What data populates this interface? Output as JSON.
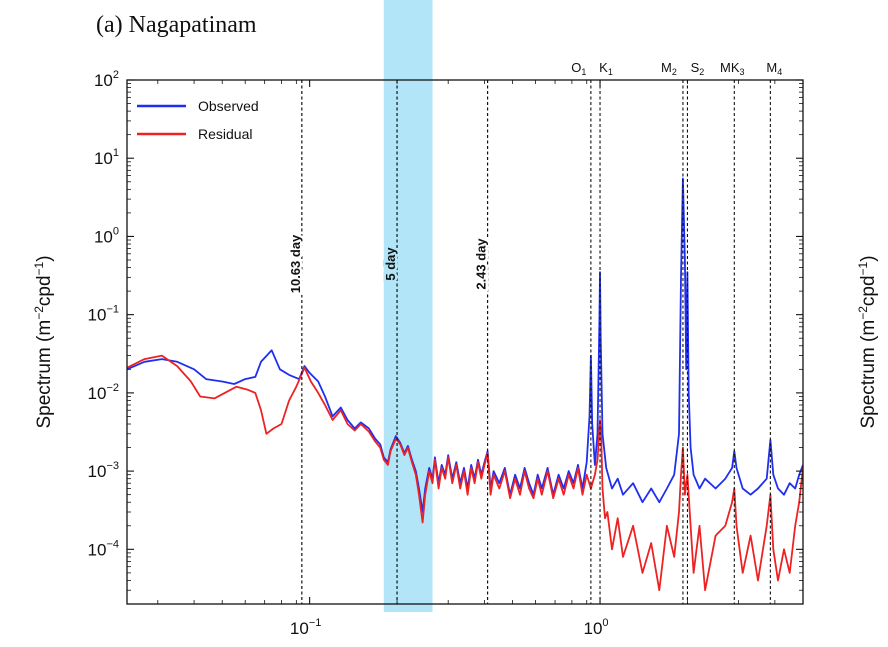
{
  "figure": {
    "panel_title": "(a) Nagapatinam",
    "ylabel_main": "Spectrum (m",
    "ylabel_sup1": "−2",
    "ylabel_mid": "cpd",
    "ylabel_sup2": "−1",
    "ylabel_end": ")",
    "right_ylabel_main": "Spectrum (m",
    "right_ylabel_sup1": "−2",
    "right_ylabel_mid": "cpd",
    "right_ylabel_sup2": "−1",
    "right_ylabel_end": ")"
  },
  "chart_data": {
    "type": "line",
    "title": "(a) Nagapatinam",
    "xlabel": "",
    "ylabel": "Spectrum (m⁻²cpd⁻¹)",
    "x_scale": "log",
    "y_scale": "log",
    "xlim": [
      0.0235,
      5.0
    ],
    "ylim": [
      2e-05,
      100
    ],
    "x_ticks": [
      {
        "value": 0.1,
        "base": "10",
        "exp": "−1"
      },
      {
        "value": 1,
        "base": "10",
        "exp": "0"
      }
    ],
    "y_ticks": [
      {
        "value": 100,
        "base": "10",
        "exp": "2"
      },
      {
        "value": 10,
        "base": "10",
        "exp": "1"
      },
      {
        "value": 1,
        "base": "10",
        "exp": "0"
      },
      {
        "value": 0.1,
        "base": "10",
        "exp": "−1"
      },
      {
        "value": 0.01,
        "base": "10",
        "exp": "−2"
      },
      {
        "value": 0.001,
        "base": "10",
        "exp": "−3"
      },
      {
        "value": 0.0001,
        "base": "10",
        "exp": "−4"
      }
    ],
    "highlight_band": {
      "x_range": [
        0.18,
        0.265
      ],
      "color": "#b3e5f8"
    },
    "period_lines": [
      {
        "x": 0.094,
        "label": "10.63 day"
      },
      {
        "x": 0.2,
        "label": "5 day"
      },
      {
        "x": 0.41,
        "label": "2.43 day"
      }
    ],
    "constituents": [
      {
        "x": 0.93,
        "name": "O",
        "sub": "1"
      },
      {
        "x": 1.0,
        "name": "K",
        "sub": "1"
      },
      {
        "x": 1.93,
        "name": "M",
        "sub": "2"
      },
      {
        "x": 2.0,
        "name": "S",
        "sub": "2"
      },
      {
        "x": 2.9,
        "name": "MK",
        "sub": "3"
      },
      {
        "x": 3.86,
        "name": "M",
        "sub": "4"
      }
    ],
    "grid": false,
    "legend_position": "top-left",
    "series": [
      {
        "name": "Observed",
        "color": "#1f2ff0",
        "points": [
          [
            0.0235,
            0.02
          ],
          [
            0.027,
            0.025
          ],
          [
            0.031,
            0.027
          ],
          [
            0.035,
            0.025
          ],
          [
            0.04,
            0.02
          ],
          [
            0.044,
            0.015
          ],
          [
            0.05,
            0.014
          ],
          [
            0.055,
            0.013
          ],
          [
            0.06,
            0.015
          ],
          [
            0.065,
            0.016
          ],
          [
            0.068,
            0.025
          ],
          [
            0.074,
            0.035
          ],
          [
            0.079,
            0.02
          ],
          [
            0.085,
            0.017
          ],
          [
            0.092,
            0.015
          ],
          [
            0.096,
            0.022
          ],
          [
            0.1,
            0.018
          ],
          [
            0.107,
            0.014
          ],
          [
            0.113,
            0.009
          ],
          [
            0.12,
            0.005
          ],
          [
            0.128,
            0.0065
          ],
          [
            0.135,
            0.0045
          ],
          [
            0.143,
            0.0035
          ],
          [
            0.15,
            0.0042
          ],
          [
            0.16,
            0.0035
          ],
          [
            0.168,
            0.0026
          ],
          [
            0.175,
            0.0022
          ],
          [
            0.18,
            0.0015
          ],
          [
            0.186,
            0.0013
          ],
          [
            0.19,
            0.0019
          ],
          [
            0.198,
            0.0028
          ],
          [
            0.205,
            0.0023
          ],
          [
            0.212,
            0.0017
          ],
          [
            0.218,
            0.0021
          ],
          [
            0.225,
            0.0014
          ],
          [
            0.232,
            0.001
          ],
          [
            0.238,
            0.0006
          ],
          [
            0.245,
            0.0003
          ],
          [
            0.25,
            0.0006
          ],
          [
            0.258,
            0.0011
          ],
          [
            0.265,
            0.0008
          ],
          [
            0.27,
            0.0015
          ],
          [
            0.278,
            0.0007
          ],
          [
            0.285,
            0.0012
          ],
          [
            0.293,
            0.0009
          ],
          [
            0.3,
            0.0016
          ],
          [
            0.31,
            0.0008
          ],
          [
            0.32,
            0.0013
          ],
          [
            0.33,
            0.0007
          ],
          [
            0.34,
            0.0011
          ],
          [
            0.35,
            0.0006
          ],
          [
            0.36,
            0.0012
          ],
          [
            0.37,
            0.0008
          ],
          [
            0.38,
            0.0014
          ],
          [
            0.39,
            0.0009
          ],
          [
            0.4,
            0.0013
          ],
          [
            0.41,
            0.0018
          ],
          [
            0.42,
            0.0006
          ],
          [
            0.43,
            0.001
          ],
          [
            0.45,
            0.0007
          ],
          [
            0.47,
            0.0011
          ],
          [
            0.49,
            0.0005
          ],
          [
            0.51,
            0.0009
          ],
          [
            0.53,
            0.0006
          ],
          [
            0.55,
            0.0011
          ],
          [
            0.57,
            0.0007
          ],
          [
            0.59,
            0.0005
          ],
          [
            0.61,
            0.0009
          ],
          [
            0.63,
            0.0006
          ],
          [
            0.66,
            0.0011
          ],
          [
            0.69,
            0.0005
          ],
          [
            0.72,
            0.0009
          ],
          [
            0.75,
            0.0006
          ],
          [
            0.78,
            0.001
          ],
          [
            0.81,
            0.0007
          ],
          [
            0.84,
            0.0012
          ],
          [
            0.87,
            0.0006
          ],
          [
            0.9,
            0.0013
          ],
          [
            0.92,
            0.005
          ],
          [
            0.93,
            0.03
          ],
          [
            0.94,
            0.004
          ],
          [
            0.96,
            0.0012
          ],
          [
            0.98,
            0.003
          ],
          [
            0.995,
            0.08
          ],
          [
            1.0,
            0.35
          ],
          [
            1.005,
            0.05
          ],
          [
            1.02,
            0.003
          ],
          [
            1.05,
            0.0011
          ],
          [
            1.1,
            0.0006
          ],
          [
            1.15,
            0.0008
          ],
          [
            1.2,
            0.0005
          ],
          [
            1.3,
            0.0007
          ],
          [
            1.4,
            0.0004
          ],
          [
            1.5,
            0.0006
          ],
          [
            1.6,
            0.0004
          ],
          [
            1.7,
            0.0006
          ],
          [
            1.8,
            0.0009
          ],
          [
            1.87,
            0.003
          ],
          [
            1.9,
            0.3
          ],
          [
            1.93,
            5.5
          ],
          [
            1.96,
            0.5
          ],
          [
            1.98,
            0.02
          ],
          [
            2.0,
            0.35
          ],
          [
            2.02,
            0.01
          ],
          [
            2.05,
            0.002
          ],
          [
            2.1,
            0.0009
          ],
          [
            2.2,
            0.0006
          ],
          [
            2.3,
            0.0008
          ],
          [
            2.5,
            0.0006
          ],
          [
            2.7,
            0.0008
          ],
          [
            2.85,
            0.0011
          ],
          [
            2.9,
            0.0018
          ],
          [
            2.95,
            0.0011
          ],
          [
            3.1,
            0.0006
          ],
          [
            3.3,
            0.0005
          ],
          [
            3.5,
            0.0006
          ],
          [
            3.75,
            0.0008
          ],
          [
            3.86,
            0.0025
          ],
          [
            3.95,
            0.0009
          ],
          [
            4.1,
            0.0006
          ],
          [
            4.3,
            0.0005
          ],
          [
            4.5,
            0.0007
          ],
          [
            4.7,
            0.0006
          ],
          [
            4.85,
            0.0009
          ],
          [
            5.0,
            0.0012
          ]
        ]
      },
      {
        "name": "Residual",
        "color": "#ee2222",
        "points": [
          [
            0.0235,
            0.021
          ],
          [
            0.027,
            0.027
          ],
          [
            0.031,
            0.03
          ],
          [
            0.035,
            0.022
          ],
          [
            0.039,
            0.014
          ],
          [
            0.042,
            0.009
          ],
          [
            0.047,
            0.0085
          ],
          [
            0.051,
            0.01
          ],
          [
            0.056,
            0.012
          ],
          [
            0.061,
            0.011
          ],
          [
            0.065,
            0.01
          ],
          [
            0.068,
            0.006
          ],
          [
            0.071,
            0.003
          ],
          [
            0.075,
            0.0035
          ],
          [
            0.08,
            0.004
          ],
          [
            0.085,
            0.008
          ],
          [
            0.09,
            0.012
          ],
          [
            0.096,
            0.021
          ],
          [
            0.101,
            0.014
          ],
          [
            0.107,
            0.01
          ],
          [
            0.113,
            0.007
          ],
          [
            0.12,
            0.0045
          ],
          [
            0.128,
            0.006
          ],
          [
            0.135,
            0.004
          ],
          [
            0.143,
            0.0033
          ],
          [
            0.15,
            0.004
          ],
          [
            0.16,
            0.0032
          ],
          [
            0.168,
            0.0024
          ],
          [
            0.175,
            0.002
          ],
          [
            0.18,
            0.0014
          ],
          [
            0.186,
            0.0012
          ],
          [
            0.19,
            0.0018
          ],
          [
            0.198,
            0.0026
          ],
          [
            0.205,
            0.0022
          ],
          [
            0.212,
            0.0016
          ],
          [
            0.218,
            0.002
          ],
          [
            0.225,
            0.0013
          ],
          [
            0.232,
            0.0009
          ],
          [
            0.238,
            0.0005
          ],
          [
            0.245,
            0.00022
          ],
          [
            0.25,
            0.0005
          ],
          [
            0.258,
            0.001
          ],
          [
            0.265,
            0.0007
          ],
          [
            0.27,
            0.0014
          ],
          [
            0.278,
            0.0006
          ],
          [
            0.285,
            0.0011
          ],
          [
            0.293,
            0.0008
          ],
          [
            0.3,
            0.0015
          ],
          [
            0.31,
            0.0007
          ],
          [
            0.32,
            0.0012
          ],
          [
            0.33,
            0.0006
          ],
          [
            0.34,
            0.001
          ],
          [
            0.35,
            0.0005
          ],
          [
            0.36,
            0.0011
          ],
          [
            0.37,
            0.0007
          ],
          [
            0.38,
            0.0013
          ],
          [
            0.39,
            0.0008
          ],
          [
            0.4,
            0.0012
          ],
          [
            0.41,
            0.0017
          ],
          [
            0.42,
            0.0005
          ],
          [
            0.43,
            0.0009
          ],
          [
            0.45,
            0.0006
          ],
          [
            0.47,
            0.001
          ],
          [
            0.49,
            0.00045
          ],
          [
            0.51,
            0.0008
          ],
          [
            0.53,
            0.0005
          ],
          [
            0.55,
            0.001
          ],
          [
            0.57,
            0.0006
          ],
          [
            0.59,
            0.00045
          ],
          [
            0.61,
            0.0008
          ],
          [
            0.63,
            0.0005
          ],
          [
            0.66,
            0.001
          ],
          [
            0.69,
            0.00045
          ],
          [
            0.72,
            0.0008
          ],
          [
            0.75,
            0.0005
          ],
          [
            0.78,
            0.0009
          ],
          [
            0.81,
            0.0006
          ],
          [
            0.84,
            0.0011
          ],
          [
            0.87,
            0.0005
          ],
          [
            0.9,
            0.0009
          ],
          [
            0.93,
            0.0006
          ],
          [
            0.96,
            0.0009
          ],
          [
            0.98,
            0.0014
          ],
          [
            1.0,
            0.0045
          ],
          [
            1.01,
            0.0025
          ],
          [
            1.02,
            0.0006
          ],
          [
            1.04,
            0.00025
          ],
          [
            1.06,
            0.0003
          ],
          [
            1.1,
            0.0001
          ],
          [
            1.15,
            0.00025
          ],
          [
            1.2,
            8e-05
          ],
          [
            1.3,
            0.0002
          ],
          [
            1.4,
            5e-05
          ],
          [
            1.5,
            0.00012
          ],
          [
            1.6,
            3e-05
          ],
          [
            1.7,
            0.0002
          ],
          [
            1.8,
            8e-05
          ],
          [
            1.87,
            0.0003
          ],
          [
            1.9,
            0.0009
          ],
          [
            1.93,
            0.002
          ],
          [
            1.96,
            0.0005
          ],
          [
            2.0,
            0.0009
          ],
          [
            2.05,
            0.0002
          ],
          [
            2.1,
            5e-05
          ],
          [
            2.2,
            0.0002
          ],
          [
            2.3,
            3e-05
          ],
          [
            2.5,
            0.00015
          ],
          [
            2.7,
            0.0002
          ],
          [
            2.85,
            0.0004
          ],
          [
            2.9,
            0.0006
          ],
          [
            2.95,
            0.0002
          ],
          [
            3.1,
            5e-05
          ],
          [
            3.3,
            0.00015
          ],
          [
            3.5,
            4e-05
          ],
          [
            3.75,
            0.0002
          ],
          [
            3.86,
            0.0005
          ],
          [
            3.95,
            0.0001
          ],
          [
            4.1,
            4e-05
          ],
          [
            4.3,
            0.0001
          ],
          [
            4.5,
            5e-05
          ],
          [
            4.7,
            0.0002
          ],
          [
            4.85,
            0.0004
          ],
          [
            5.0,
            0.0011
          ]
        ]
      }
    ]
  }
}
